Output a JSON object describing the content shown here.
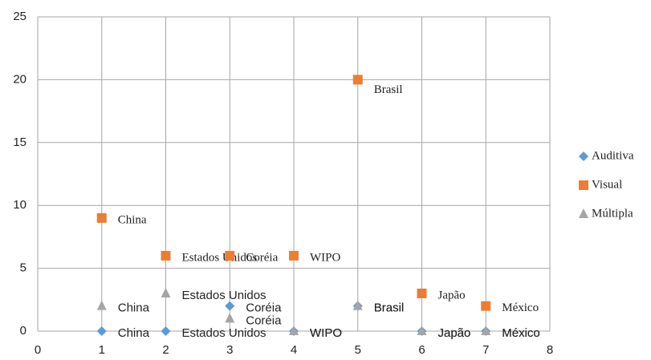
{
  "chart_data": {
    "type": "scatter",
    "x": [
      1,
      2,
      3,
      4,
      5,
      6,
      7
    ],
    "series": [
      {
        "name": "Auditiva",
        "color": "#5b9bd5",
        "marker": "diamond",
        "values": [
          0,
          0,
          2,
          0,
          2,
          0,
          0
        ],
        "labels": [
          "China",
          "Estados Unidos",
          "Coréia",
          "WIPO",
          "Brasil",
          "Japão",
          "México"
        ]
      },
      {
        "name": "Visual",
        "color": "#ed7d31",
        "marker": "square",
        "values": [
          9,
          6,
          6,
          6,
          20,
          3,
          2
        ],
        "labels": [
          "China",
          "Estados Unidos",
          "Coréia",
          "WIPO",
          "Brasil",
          "Japão",
          "México"
        ]
      },
      {
        "name": "Múltipla",
        "color": "#a5a5a5",
        "marker": "triangle",
        "values": [
          2,
          3,
          1,
          0,
          2,
          0,
          0
        ],
        "labels": [
          "China",
          "Estados Unidos",
          "Coréia",
          "WIPO",
          "Brasil",
          "Japão",
          "México"
        ]
      }
    ],
    "xlim": [
      0,
      8
    ],
    "xticks": [
      0,
      1,
      2,
      3,
      4,
      5,
      6,
      7,
      8
    ],
    "ylim": [
      0,
      25
    ],
    "yticks": [
      0,
      5,
      10,
      15,
      20,
      25
    ],
    "grid": true,
    "legend": "right"
  }
}
